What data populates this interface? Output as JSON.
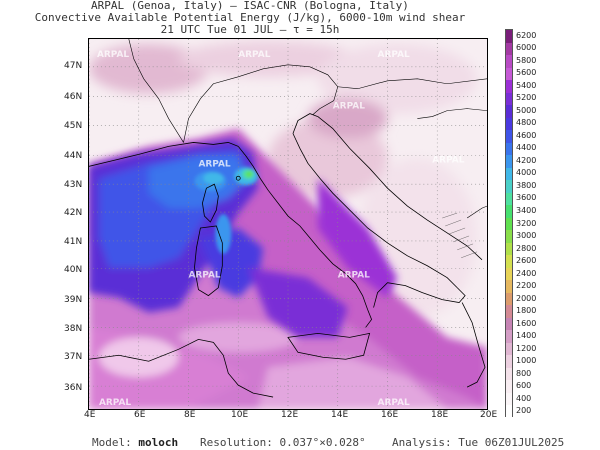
{
  "header": {
    "line1": "ARPAL (Genoa, Italy)  –  ISAC-CNR (Bologna, Italy)",
    "line2": "Convective Available Potential Energy (J/kg), 6000-10m wind shear",
    "line3": "21 UTC Tue 01 JUL  –  τ = 15h"
  },
  "map": {
    "latitudes": [
      "47N",
      "46N",
      "45N",
      "44N",
      "43N",
      "42N",
      "41N",
      "40N",
      "39N",
      "38N",
      "37N",
      "36N"
    ],
    "longitudes": [
      "4E",
      "6E",
      "8E",
      "10E",
      "12E",
      "14E",
      "16E",
      "18E",
      "20E"
    ],
    "watermarks": [
      "ARPAL",
      "ARPAL",
      "ARPAL",
      "ARPAL",
      "ARPAL",
      "ARPAL",
      "ARPAL",
      "ARPAL",
      "ARPAL",
      "ARPAL"
    ]
  },
  "colorbar": {
    "labels": [
      "6200",
      "6000",
      "5800",
      "5600",
      "5400",
      "5200",
      "5000",
      "4800",
      "4600",
      "4400",
      "4200",
      "4000",
      "3800",
      "3600",
      "3400",
      "3200",
      "3000",
      "2800",
      "2600",
      "2400",
      "2200",
      "2000",
      "1800",
      "1600",
      "1400",
      "1200",
      "1000",
      "800",
      "600",
      "400",
      "200"
    ],
    "colors": [
      "#7a1e7a",
      "#a33aa3",
      "#b84bc4",
      "#c65ad6",
      "#9b30d6",
      "#7a2fd6",
      "#5a2ed6",
      "#4a3ae0",
      "#3f55e8",
      "#3a74ec",
      "#3b96ee",
      "#40b8e8",
      "#4ad0c8",
      "#4ee0a0",
      "#46e070",
      "#60e050",
      "#8ade4a",
      "#b0e04a",
      "#d4e050",
      "#e8d458",
      "#e6b860",
      "#dc9c6c",
      "#d48a94",
      "#c684b4",
      "#d49ec6",
      "#e0b6d2",
      "#ecd0e0",
      "#f4e2ea",
      "#f8eef2",
      "#fbf6f8",
      "#ffffff"
    ]
  },
  "footer": {
    "model_label": "Model:",
    "model_value": "moloch",
    "resolution_label": "Resolution:",
    "resolution_value": "0.037°×0.028°",
    "analysis_label": "Analysis:",
    "analysis_value": "Tue 06Z01JUL2025"
  }
}
